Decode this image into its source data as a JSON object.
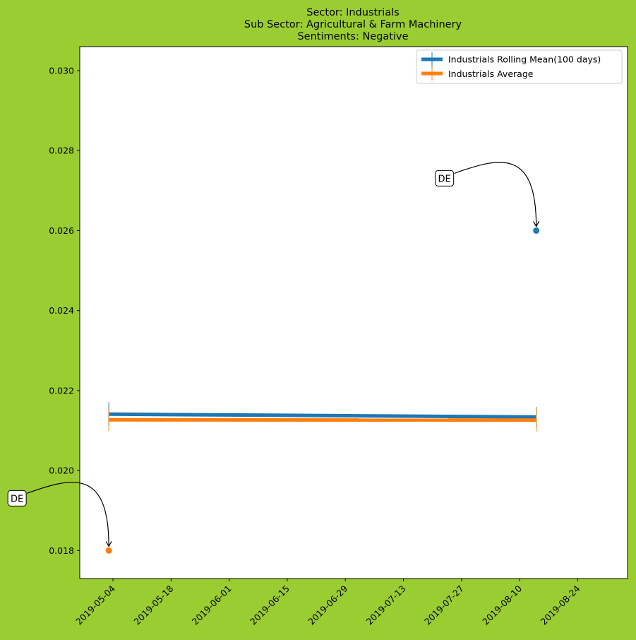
{
  "chart_data": {
    "type": "line",
    "title_lines": [
      "Sector:  Industrials",
      "Sub Sector:  Agricultural & Farm Machinery",
      "Sentiments:  Negative"
    ],
    "xlabel": "",
    "ylabel": "",
    "x_axis": {
      "type": "date",
      "range": [
        "2019-04-26",
        "2019-09-05"
      ],
      "ticks": [
        "2019-05-04",
        "2019-05-18",
        "2019-06-01",
        "2019-06-15",
        "2019-06-29",
        "2019-07-13",
        "2019-07-27",
        "2019-08-10",
        "2019-08-24"
      ]
    },
    "y_axis": {
      "range": [
        0.0173,
        0.0306
      ],
      "ticks": [
        0.018,
        0.02,
        0.022,
        0.024,
        0.026,
        0.028,
        0.03
      ],
      "tick_labels": [
        "0.018",
        "0.020",
        "0.022",
        "0.024",
        "0.026",
        "0.028",
        "0.030"
      ]
    },
    "grid": false,
    "legend_position": "top-right",
    "series": [
      {
        "name": "Industrials Rolling Mean(100 days)",
        "color": "#1f77b4",
        "x": [
          "2019-05-03",
          "2019-08-14"
        ],
        "y": [
          0.02141,
          0.02134
        ],
        "yerr": [
          0.0003,
          0.00025
        ]
      },
      {
        "name": "Industrials Average",
        "color": "#ff7f0e",
        "x": [
          "2019-05-03",
          "2019-08-14"
        ],
        "y": [
          0.02127,
          0.02126
        ],
        "yerr": [
          0.00028,
          0.00028
        ]
      }
    ],
    "points": [
      {
        "x": "2019-08-14",
        "y": 0.026,
        "color": "#1f77b4"
      },
      {
        "x": "2019-05-03",
        "y": 0.018,
        "color": "#ff7f0e"
      }
    ],
    "annotations": [
      {
        "text": "DE",
        "target_x": "2019-08-14",
        "target_y": 0.026
      },
      {
        "text": "DE",
        "target_x": "2019-05-03",
        "target_y": 0.018
      }
    ]
  }
}
